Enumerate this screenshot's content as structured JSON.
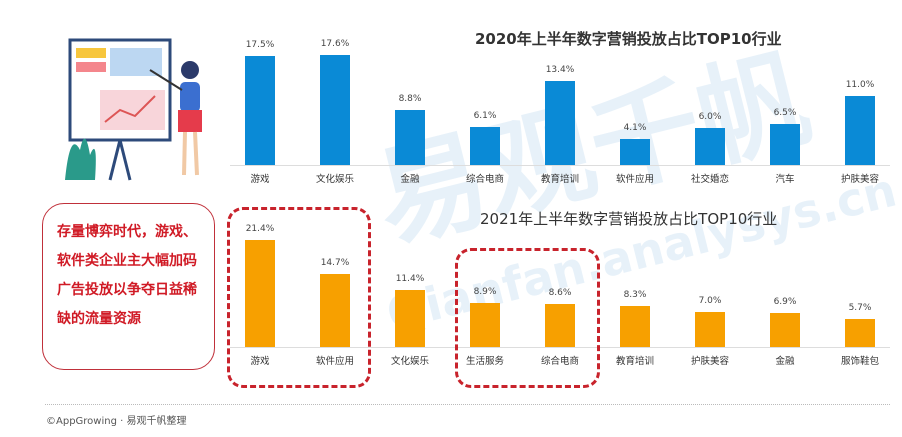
{
  "chart_data": [
    {
      "type": "bar",
      "title": "2020年上半年数字营销投放占比TOP10行业",
      "color": "#0a8ad6",
      "categories": [
        "游戏",
        "文化娱乐",
        "金融",
        "综合电商",
        "教育培训",
        "软件应用",
        "社交婚恋",
        "汽车",
        "护肤美容"
      ],
      "values": [
        17.5,
        17.6,
        8.8,
        6.1,
        13.4,
        4.1,
        6.0,
        6.5,
        11.0
      ],
      "labels": [
        "17.5%",
        "17.6%",
        "8.8%",
        "6.1%",
        "13.4%",
        "4.1%",
        "6.0%",
        "6.5%",
        "11.0%"
      ]
    },
    {
      "type": "bar",
      "title": "2021年上半年数字营销投放占比TOP10行业",
      "color": "#f7a000",
      "categories": [
        "游戏",
        "软件应用",
        "文化娱乐",
        "生活服务",
        "综合电商",
        "教育培训",
        "护肤美容",
        "金融",
        "服饰鞋包"
      ],
      "values": [
        21.4,
        14.7,
        11.4,
        8.9,
        8.6,
        8.3,
        7.0,
        6.9,
        5.7
      ],
      "labels": [
        "21.4%",
        "14.7%",
        "11.4%",
        "8.9%",
        "8.6%",
        "8.3%",
        "7.0%",
        "6.9%",
        "5.7%"
      ]
    }
  ],
  "note": "存量博弈时代，游戏、软件类企业主大幅加码广告投放以争夺日益稀缺的流量资源",
  "watermark": {
    "cn": "易观千帆",
    "en": "Qianfan.analysys.cn"
  },
  "footer": "©AppGrowing · 易观千帆整理"
}
